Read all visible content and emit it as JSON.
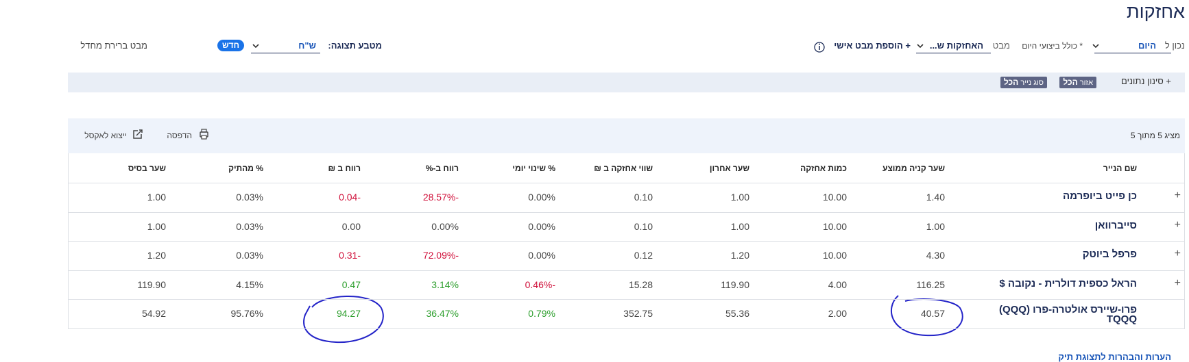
{
  "header": {
    "title": "אחזקות"
  },
  "toolbar": {
    "as_of_label": "נכון ל",
    "as_of_value": "היום",
    "include_today": "* כולל ביצועי היום",
    "view_label": "מבט",
    "view_value": "האחזקות ש...",
    "add_view": "+ הוספת מבט אישי",
    "currency_label": "מטבע תצוגה:",
    "currency_value": "ש\"ח",
    "new_badge": "חדש",
    "default_view": "מבט ברירת מחדל"
  },
  "filters": {
    "label": "+ סינון נתונים",
    "chips": [
      {
        "name": "אזור",
        "value": "הכל"
      },
      {
        "name": "סוג נייר",
        "value": "הכל"
      }
    ]
  },
  "table": {
    "count": "מציג 5 מתוך 5",
    "print": "הדפסה",
    "export": "ייצוא לאקסל",
    "columns": [
      "שם הנייר",
      "שער קניה ממוצע",
      "כמות אחזקה",
      "שער אחרון",
      "שווי אחזקה ב ₪",
      "% שינוי יומי",
      "רווח ב-%",
      "רווח ב ₪",
      "% מהתיק",
      "שער בסיס"
    ],
    "rows": [
      {
        "expandable": true,
        "cells": [
          "כן פייט ביופרמה",
          "1.40",
          "10.00",
          "1.00",
          "0.10",
          "0.00%",
          "-28.57%",
          "-0.04",
          "0.03%",
          "1.00"
        ]
      },
      {
        "expandable": true,
        "cells": [
          "סייברוואן",
          "1.00",
          "10.00",
          "1.00",
          "0.10",
          "0.00%",
          "0.00%",
          "0.00",
          "0.03%",
          "1.00"
        ]
      },
      {
        "expandable": true,
        "cells": [
          "פרפל ביוטק",
          "4.30",
          "10.00",
          "1.20",
          "0.12",
          "0.00%",
          "-72.09%",
          "-0.31",
          "0.03%",
          "1.20"
        ]
      },
      {
        "expandable": true,
        "cells": [
          "הראל כספית דולרית - נקובה $",
          "116.25",
          "4.00",
          "119.90",
          "15.28",
          "-0.46%",
          "3.14%",
          "0.47",
          "4.15%",
          "119.90"
        ]
      },
      {
        "expandable": false,
        "cells": [
          "פרו-שיירס אולטרה-פרו (QQQ) TQQQ",
          "40.57",
          "2.00",
          "55.36",
          "352.75",
          "0.79%",
          "36.47%",
          "94.27",
          "95.76%",
          "54.92"
        ]
      }
    ]
  },
  "footer": {
    "link": "הערות והבהרות לתצוגת תיק"
  }
}
